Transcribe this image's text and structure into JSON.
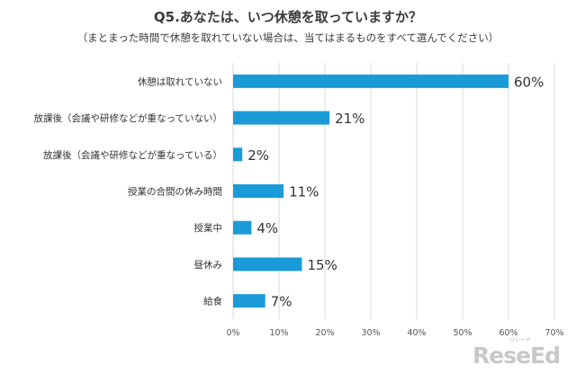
{
  "chart_data": {
    "type": "bar",
    "orientation": "horizontal",
    "title": "Q5.あなたは、いつ休憩を取っていますか？",
    "subtitle": "（まとまった時間で休憩を取れていない場合は、当てはまるものをすべて選んでください）",
    "categories": [
      "休憩は取れていない",
      "放課後（会議や研修などが重なっていない）",
      "放課後（会議や研修などが重なっている）",
      "授業の合間の休み時間",
      "授業中",
      "昼休み",
      "給食"
    ],
    "values": [
      60,
      21,
      2,
      11,
      4,
      15,
      7
    ],
    "value_labels": [
      "60%",
      "21%",
      "2%",
      "11%",
      "4%",
      "15%",
      "7%"
    ],
    "xlim": [
      0,
      70
    ],
    "xticks": [
      0,
      10,
      20,
      30,
      40,
      50,
      60,
      70
    ],
    "xtick_labels": [
      "0%",
      "10%",
      "20%",
      "30%",
      "40%",
      "50%",
      "60%",
      "70%"
    ],
    "grid": true,
    "bar_color": "#1a9bd7"
  },
  "logo": {
    "text": "ReseEd",
    "subtext": "リシード"
  }
}
